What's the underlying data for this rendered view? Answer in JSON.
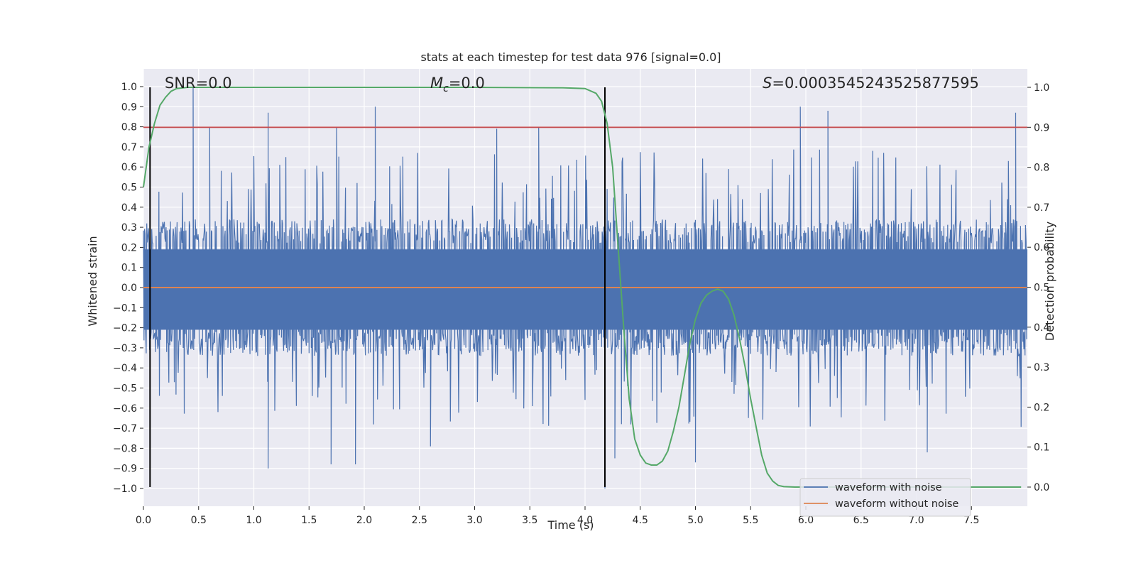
{
  "chart_data": {
    "type": "line",
    "title": "stats at each timestep for test data 976 [signal=0.0]",
    "xlabel": "Time (s)",
    "ylabel": "Whitened strain",
    "y2label": "Detection probability",
    "xlim": [
      0.0,
      8.0
    ],
    "ylim": [
      -1.09,
      1.1
    ],
    "y2lim": [
      -0.05,
      1.05
    ],
    "xticks": [
      "0.0",
      "0.5",
      "1.0",
      "1.5",
      "2.0",
      "2.5",
      "3.0",
      "3.5",
      "4.0",
      "4.5",
      "5.0",
      "5.5",
      "6.0",
      "6.5",
      "7.0",
      "7.5"
    ],
    "yticks": [
      "1.0",
      "0.9",
      "0.8",
      "0.7",
      "0.6",
      "0.5",
      "0.4",
      "0.3",
      "0.2",
      "0.1",
      "0.0",
      "−0.1",
      "−0.2",
      "−0.3",
      "−0.4",
      "−0.5",
      "−0.6",
      "−0.7",
      "−0.8",
      "−0.9",
      "−1.0"
    ],
    "y2ticks": [
      "1.0",
      "0.9",
      "0.8",
      "0.7",
      "0.6",
      "0.5",
      "0.4",
      "0.3",
      "0.2",
      "0.1",
      "0.0"
    ],
    "grid": true,
    "annotations": {
      "snr": "SNR=0.0",
      "mc": "=0.0",
      "mc_symbol": "M",
      "mc_sub": "c",
      "s": "=0.0003545243525877595",
      "s_symbol": "S"
    },
    "threshold_y2": 0.9,
    "vlines_x": [
      0.06,
      4.18
    ],
    "legend": {
      "placement": "lower-right",
      "entries": [
        "waveform with noise",
        "waveform without noise"
      ]
    },
    "colors": {
      "noise": "#4c72b0",
      "clean": "#dd8452",
      "probability": "#55a868",
      "threshold": "#c44e52",
      "vline": "#000000",
      "background": "#eaeaf2"
    },
    "series": [
      {
        "name": "waveform with noise",
        "envelope_peaks": [
          {
            "x": 0.45,
            "y": 1.0
          },
          {
            "x": 0.6,
            "y": 0.8
          },
          {
            "x": 1.13,
            "y": 0.87
          },
          {
            "x": 1.75,
            "y": 0.8
          },
          {
            "x": 2.1,
            "y": 0.9
          },
          {
            "x": 3.2,
            "y": 0.79
          },
          {
            "x": 3.58,
            "y": 0.8
          },
          {
            "x": 5.95,
            "y": 0.9
          },
          {
            "x": 6.2,
            "y": 0.88
          },
          {
            "x": 7.9,
            "y": 0.87
          }
        ],
        "envelope_troughs": [
          {
            "x": 1.13,
            "y": -0.9
          },
          {
            "x": 1.7,
            "y": -0.88
          },
          {
            "x": 1.92,
            "y": -0.88
          },
          {
            "x": 2.6,
            "y": -0.79
          },
          {
            "x": 4.18,
            "y": -1.0
          },
          {
            "x": 4.27,
            "y": -0.85
          },
          {
            "x": 5.0,
            "y": -0.87
          },
          {
            "x": 7.1,
            "y": -0.82
          }
        ]
      },
      {
        "name": "waveform without noise",
        "x": [
          0.0,
          8.0
        ],
        "y": [
          0.0,
          0.0
        ]
      },
      {
        "name": "detection probability",
        "x": [
          0.0,
          0.05,
          0.1,
          0.15,
          0.2,
          0.25,
          0.3,
          0.4,
          0.5,
          1.0,
          2.0,
          3.0,
          3.8,
          4.0,
          4.1,
          4.15,
          4.2,
          4.25,
          4.3,
          4.35,
          4.4,
          4.45,
          4.5,
          4.55,
          4.6,
          4.65,
          4.7,
          4.75,
          4.8,
          4.85,
          4.9,
          4.95,
          5.0,
          5.05,
          5.1,
          5.15,
          5.2,
          5.25,
          5.3,
          5.35,
          5.4,
          5.45,
          5.5,
          5.55,
          5.6,
          5.65,
          5.7,
          5.75,
          5.8,
          5.9,
          6.0,
          7.0,
          7.95
        ],
        "y": [
          0.75,
          0.85,
          0.91,
          0.955,
          0.975,
          0.99,
          0.997,
          1.0,
          1.0,
          1.0,
          1.0,
          1.0,
          0.999,
          0.997,
          0.985,
          0.965,
          0.91,
          0.8,
          0.6,
          0.4,
          0.22,
          0.12,
          0.08,
          0.06,
          0.055,
          0.055,
          0.065,
          0.09,
          0.14,
          0.2,
          0.28,
          0.36,
          0.42,
          0.46,
          0.48,
          0.49,
          0.495,
          0.49,
          0.47,
          0.43,
          0.37,
          0.3,
          0.22,
          0.15,
          0.08,
          0.035,
          0.015,
          0.004,
          0.001,
          0.0,
          0.0,
          0.0,
          0.0
        ]
      }
    ]
  }
}
